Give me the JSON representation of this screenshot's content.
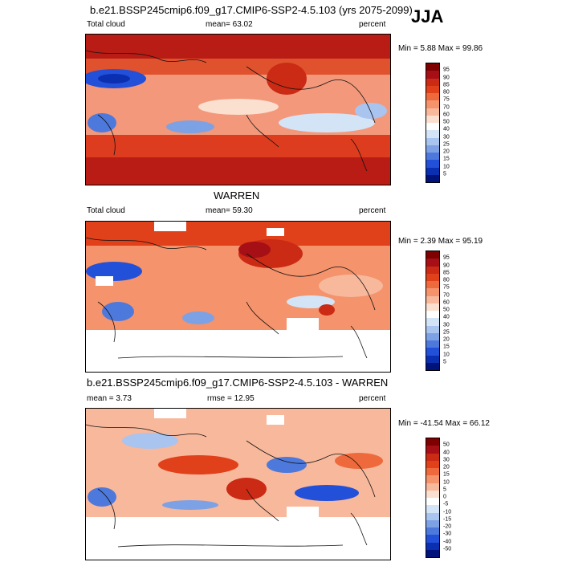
{
  "season": "JJA",
  "panels": [
    {
      "title": "b.e21.BSSP245cmip6.f09_g17.CMIP6-SSP2-4.5.103 (yrs 2075-2099)",
      "left_label": "Total cloud",
      "center_label": "mean=  63.02",
      "right_label": "percent",
      "minmax": "Min =   5.88 Max =  99.86",
      "colorbar_labels": [
        "95",
        "90",
        "85",
        "80",
        "75",
        "70",
        "60",
        "50",
        "40",
        "30",
        "25",
        "20",
        "15",
        "10",
        "5"
      ]
    },
    {
      "title": "WARREN",
      "left_label": "Total cloud",
      "center_label": "mean=  59.30",
      "right_label": "percent",
      "minmax": "Min =   2.39 Max =  95.19",
      "colorbar_labels": [
        "95",
        "90",
        "85",
        "80",
        "75",
        "70",
        "60",
        "50",
        "40",
        "30",
        "25",
        "20",
        "15",
        "10",
        "5"
      ]
    },
    {
      "title": "b.e21.BSSP245cmip6.f09_g17.CMIP6-SSP2-4.5.103 - WARREN",
      "left_label": "mean =   3.73",
      "center_label": "rmse =  12.95",
      "right_label": "percent",
      "minmax": "Min = -41.54 Max =  66.12",
      "colorbar_labels": [
        "50",
        "40",
        "30",
        "20",
        "15",
        "10",
        "5",
        "0",
        "-5",
        "-10",
        "-15",
        "-20",
        "-30",
        "-40",
        "-50"
      ]
    }
  ],
  "colors": {
    "palette": [
      "#7f0000",
      "#a50f15",
      "#cb2a14",
      "#e0401a",
      "#ee6a3c",
      "#f4936c",
      "#f8b89c",
      "#fbe0cf",
      "#ffffff",
      "#d4e4f7",
      "#a9c4ef",
      "#7da1e5",
      "#4d79dd",
      "#2350d8",
      "#0a2fb0",
      "#00137a"
    ]
  }
}
